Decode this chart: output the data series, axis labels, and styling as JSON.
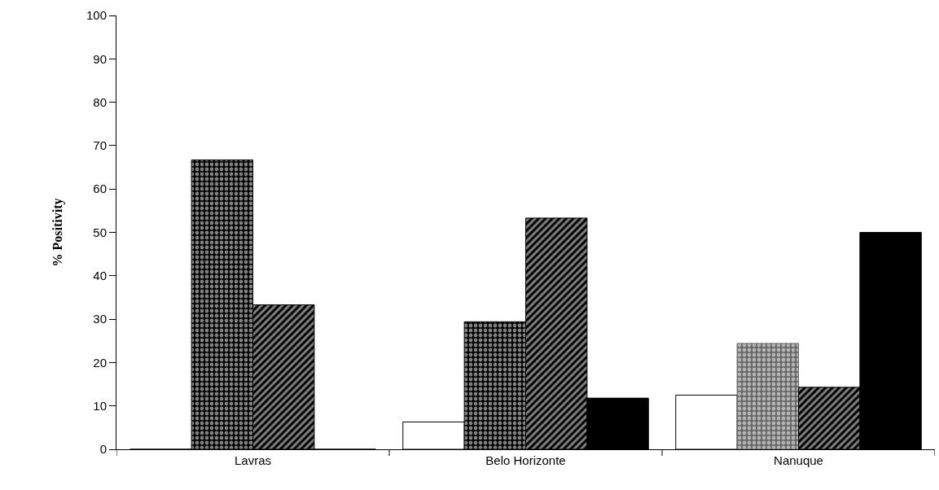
{
  "chart_data": {
    "type": "bar",
    "ylabel": "% Positivity",
    "categories": [
      "Lavras",
      "Belo Horizonte",
      "Nanuque"
    ],
    "series": [
      {
        "color": "#ffffff",
        "values": [
          0,
          6.3,
          12.5
        ]
      },
      {
        "colors": [
          "#000000",
          "#000000",
          "#666666"
        ],
        "values": [
          66.7,
          29.4,
          24.4
        ]
      },
      {
        "color": "#000000",
        "values": [
          33.3,
          53.3,
          14.3
        ]
      },
      {
        "color": "#000000",
        "values": [
          0,
          11.8,
          50
        ]
      }
    ],
    "ylim": [
      0,
      100
    ],
    "yticks": [
      0,
      10,
      20,
      30,
      40,
      50,
      60,
      70,
      80,
      90,
      100
    ]
  }
}
